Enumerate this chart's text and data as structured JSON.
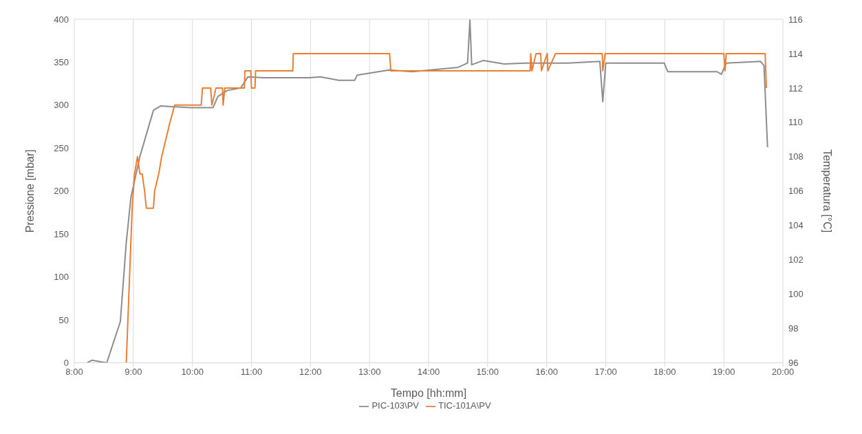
{
  "chart_data": {
    "type": "line",
    "xlabel": "Tempo [hh:mm]",
    "ylabel": "Pressione [mbar]",
    "y2label": "Temperatura [°C]",
    "xlim": [
      8,
      20
    ],
    "xticks": [
      {
        "value": 8,
        "label": "8:00"
      },
      {
        "value": 9,
        "label": "9:00"
      },
      {
        "value": 10,
        "label": "10:00"
      },
      {
        "value": 11,
        "label": "11:00"
      },
      {
        "value": 12,
        "label": "12:00"
      },
      {
        "value": 13,
        "label": "13:00"
      },
      {
        "value": 14,
        "label": "14:00"
      },
      {
        "value": 15,
        "label": "15:00"
      },
      {
        "value": 16,
        "label": "16:00"
      },
      {
        "value": 17,
        "label": "17:00"
      },
      {
        "value": 18,
        "label": "18:00"
      },
      {
        "value": 19,
        "label": "19:00"
      },
      {
        "value": 20,
        "label": "20:00"
      }
    ],
    "ylim": [
      0,
      400
    ],
    "yticks": [
      0,
      50,
      100,
      150,
      200,
      250,
      300,
      350,
      400
    ],
    "y2lim": [
      96,
      116
    ],
    "y2ticks": [
      96,
      98,
      100,
      102,
      104,
      106,
      108,
      110,
      112,
      114,
      116
    ],
    "grid": true,
    "legend": "bottom",
    "marker": "none",
    "line_style": "solid",
    "series": [
      {
        "name": "PIC-103\\PV",
        "color": "#8c8c8c",
        "x": [
          8.22,
          8.3,
          8.55,
          8.78,
          8.88,
          8.96,
          9.11,
          9.34,
          9.46,
          9.97,
          10.35,
          10.43,
          10.59,
          10.82,
          10.94,
          11.21,
          11.98,
          12.17,
          12.48,
          12.75,
          12.79,
          13.33,
          13.72,
          14.5,
          14.66,
          14.7,
          14.73,
          14.93,
          15.28,
          15.67,
          16.06,
          16.36,
          16.9,
          16.95,
          17.0,
          17.99,
          18.05,
          18.88,
          18.96,
          19.04,
          19.62,
          19.68,
          19.74
        ],
        "values": [
          0,
          3,
          0,
          48,
          140,
          193,
          240,
          294,
          299,
          297,
          297,
          310,
          317,
          320,
          333,
          332,
          332,
          333,
          329,
          329,
          335,
          341,
          339,
          344,
          349,
          399,
          347,
          352,
          348,
          349,
          349,
          349,
          351,
          304,
          349,
          349,
          339,
          339,
          336,
          349,
          351,
          346,
          251
        ]
      },
      {
        "name": "TIC-101A\\PV",
        "color": "#ed7d31",
        "axis": "y2",
        "x": [
          8.88,
          8.98,
          9.02,
          9.07,
          9.11,
          9.15,
          9.19,
          9.22,
          9.34,
          9.36,
          9.43,
          9.48,
          9.55,
          9.62,
          9.7,
          10.15,
          10.17,
          10.31,
          10.33,
          10.4,
          10.51,
          10.52,
          10.55,
          10.88,
          10.89,
          10.99,
          11.0,
          11.06,
          11.07,
          11.7,
          11.71,
          13.34,
          13.36,
          15.72,
          15.73,
          15.75,
          15.82,
          15.9,
          15.91,
          16.01,
          16.02,
          16.15,
          16.16,
          16.94,
          16.95,
          16.99,
          19.0,
          19.02,
          19.04,
          19.7,
          19.72
        ],
        "values": [
          96,
          105,
          107,
          108,
          107,
          107,
          106,
          105,
          105,
          106,
          107,
          108,
          109,
          110,
          111,
          111,
          112,
          112,
          111,
          112,
          112,
          111,
          112,
          112,
          113,
          113,
          112,
          112,
          113,
          113,
          114,
          114,
          113,
          113,
          114,
          113,
          114,
          114,
          113,
          114,
          113,
          114,
          114,
          114,
          113,
          114,
          114,
          113,
          114,
          114,
          112
        ]
      }
    ]
  }
}
